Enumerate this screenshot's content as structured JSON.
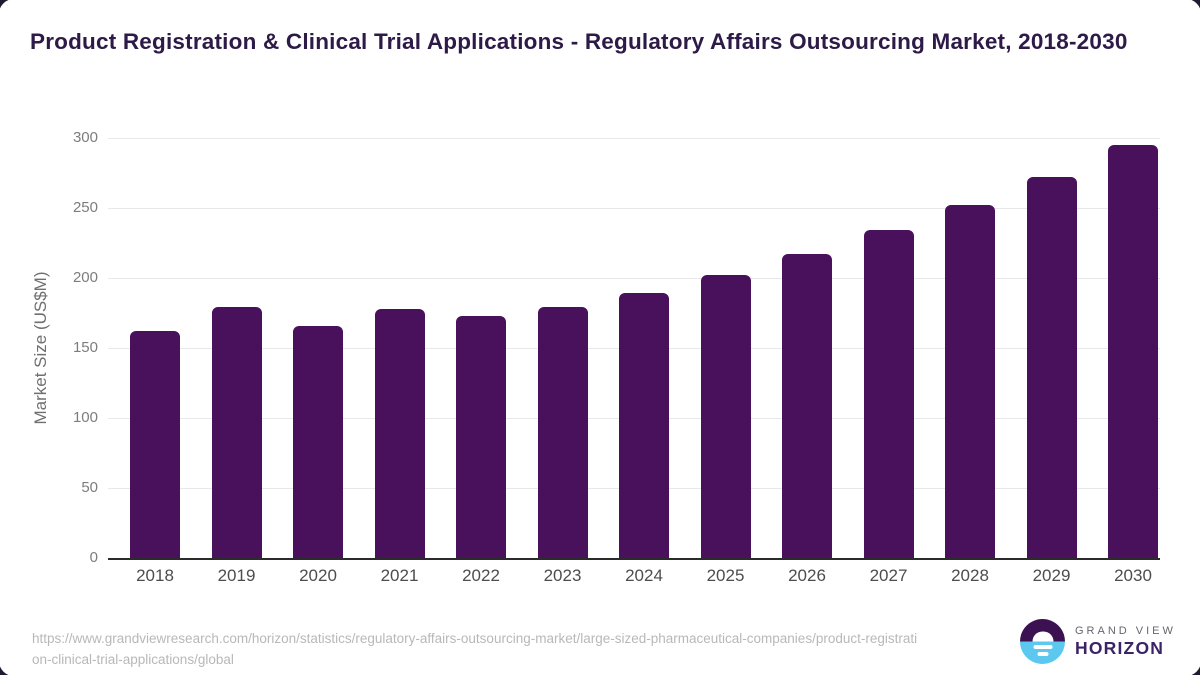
{
  "title": "Product Registration & Clinical Trial Applications - Regulatory Affairs Outsourcing Market, 2018-2030",
  "chart_data": {
    "type": "bar",
    "title": "Product Registration & Clinical Trial Applications - Regulatory Affairs Outsourcing Market, 2018-2030",
    "categories": [
      "2018",
      "2019",
      "2020",
      "2021",
      "2022",
      "2023",
      "2024",
      "2025",
      "2026",
      "2027",
      "2028",
      "2029",
      "2030"
    ],
    "values": [
      162,
      179,
      166,
      178,
      173,
      179,
      189,
      202,
      217,
      234,
      252,
      272,
      295
    ],
    "xlabel": "",
    "ylabel": "Market Size (US$M)",
    "ylim": [
      0,
      300
    ],
    "yticks": [
      0,
      50,
      100,
      150,
      200,
      250,
      300
    ],
    "grid": true,
    "legend": "none",
    "bar_color": "#49105b"
  },
  "footer": {
    "source_url": "https://www.grandviewresearch.com/horizon/statistics/regulatory-affairs-outsourcing-market/large-sized-pharmaceutical-companies/product-registration-clinical-trial-applications/global",
    "logo": {
      "top": "GRAND VIEW",
      "bottom": "HORIZON"
    }
  },
  "colors": {
    "bar": "#49105b",
    "title": "#2d1a47",
    "gridline": "#e8e8e8",
    "axis_line": "#2b2b2b",
    "ytick_text": "#7d7d7d",
    "xtick_text": "#4d4d4d",
    "yaxis_title_text": "#6f6f6f",
    "source_text": "#b8b8b8",
    "logo_purple": "#3b1152",
    "logo_blue": "#5cc8f0",
    "logo_horizon_text": "#3a2367",
    "logo_grandview_text": "#68646f",
    "card_border": "#1c1b30"
  }
}
